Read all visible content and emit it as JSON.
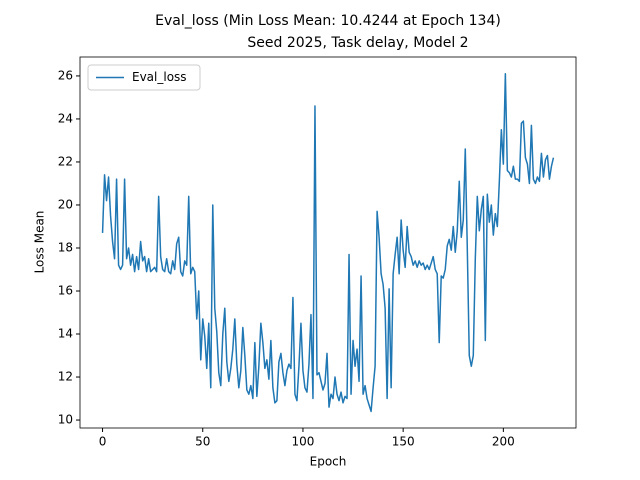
{
  "chart_data": {
    "type": "line",
    "title": [
      "Eval_loss (Min Loss Mean: 10.4244 at Epoch 134)",
      "Seed 2025, Task delay, Model 2"
    ],
    "xlabel": "Epoch",
    "ylabel": "Loss Mean",
    "xlim": [
      -11.25,
      236.25
    ],
    "ylim": [
      9.63,
      26.88
    ],
    "xticks": [
      0,
      50,
      100,
      150,
      200
    ],
    "yticks": [
      10,
      12,
      14,
      16,
      18,
      20,
      22,
      24,
      26
    ],
    "legend": "upper left",
    "grid": false,
    "x": [
      0,
      1,
      2,
      3,
      4,
      5,
      6,
      7,
      8,
      9,
      10,
      11,
      12,
      13,
      14,
      15,
      16,
      17,
      18,
      19,
      20,
      21,
      22,
      23,
      24,
      25,
      26,
      27,
      28,
      29,
      30,
      31,
      32,
      33,
      34,
      35,
      36,
      37,
      38,
      39,
      40,
      41,
      42,
      43,
      44,
      45,
      46,
      47,
      48,
      49,
      50,
      51,
      52,
      53,
      54,
      55,
      56,
      57,
      58,
      59,
      60,
      61,
      62,
      63,
      64,
      65,
      66,
      67,
      68,
      69,
      70,
      71,
      72,
      73,
      74,
      75,
      76,
      77,
      78,
      79,
      80,
      81,
      82,
      83,
      84,
      85,
      86,
      87,
      88,
      89,
      90,
      91,
      92,
      93,
      94,
      95,
      96,
      97,
      98,
      99,
      100,
      101,
      102,
      103,
      104,
      105,
      106,
      107,
      108,
      109,
      110,
      111,
      112,
      113,
      114,
      115,
      116,
      117,
      118,
      119,
      120,
      121,
      122,
      123,
      124,
      125,
      126,
      127,
      128,
      129,
      130,
      131,
      132,
      133,
      134,
      135,
      136,
      137,
      138,
      139,
      140,
      141,
      142,
      143,
      144,
      145,
      146,
      147,
      148,
      149,
      150,
      151,
      152,
      153,
      154,
      155,
      156,
      157,
      158,
      159,
      160,
      161,
      162,
      163,
      164,
      165,
      166,
      167,
      168,
      169,
      170,
      171,
      172,
      173,
      174,
      175,
      176,
      177,
      178,
      179,
      180,
      181,
      182,
      183,
      184,
      185,
      186,
      187,
      188,
      189,
      190,
      191,
      192,
      193,
      194,
      195,
      196,
      197,
      198,
      199,
      200,
      201,
      202,
      203,
      204,
      205,
      206,
      207,
      208,
      209,
      210,
      211,
      212,
      213,
      214,
      215,
      216,
      217,
      218,
      219,
      220,
      221,
      222,
      223,
      224,
      225
    ],
    "series": [
      {
        "name": "Eval_loss",
        "color": "#1f77b4",
        "values": [
          18.7,
          21.4,
          20.2,
          21.3,
          19.5,
          18.3,
          17.5,
          21.2,
          17.2,
          17.0,
          17.2,
          21.2,
          17.5,
          18.0,
          17.2,
          17.7,
          16.9,
          17.6,
          17.0,
          18.3,
          17.4,
          17.6,
          16.9,
          17.5,
          16.9,
          17.0,
          17.1,
          16.9,
          20.4,
          17.6,
          17.0,
          16.9,
          17.5,
          16.9,
          16.8,
          17.4,
          17.0,
          18.2,
          18.5,
          16.9,
          16.7,
          17.4,
          17.2,
          20.4,
          16.8,
          17.1,
          16.9,
          14.7,
          16.0,
          12.8,
          14.7,
          13.9,
          12.4,
          14.5,
          11.5,
          20.0,
          15.2,
          14.1,
          12.2,
          11.6,
          14.0,
          15.2,
          12.7,
          11.8,
          12.4,
          13.3,
          14.7,
          12.6,
          11.5,
          12.3,
          14.3,
          13.0,
          11.4,
          11.2,
          11.6,
          11.0,
          13.6,
          11.1,
          12.5,
          14.5,
          13.6,
          12.4,
          12.8,
          11.9,
          13.7,
          11.5,
          10.8,
          10.9,
          12.7,
          13.1,
          12.2,
          11.6,
          12.3,
          12.6,
          12.4,
          15.7,
          11.2,
          10.9,
          12.5,
          14.5,
          12.3,
          11.5,
          11.3,
          12.6,
          14.9,
          11.0,
          24.6,
          12.1,
          12.2,
          11.8,
          11.4,
          11.7,
          13.1,
          10.6,
          11.2,
          11.0,
          12.0,
          11.2,
          10.9,
          11.3,
          10.8,
          11.1,
          11.0,
          17.7,
          11.2,
          13.7,
          12.5,
          13.3,
          11.8,
          16.7,
          11.2,
          11.6,
          11.0,
          10.7,
          10.4,
          11.5,
          12.5,
          19.7,
          18.5,
          16.8,
          16.3,
          15.2,
          11.0,
          16.1,
          11.5,
          16.8,
          17.7,
          18.5,
          16.8,
          19.3,
          17.9,
          17.1,
          19.0,
          17.8,
          17.6,
          17.2,
          17.4,
          17.1,
          17.4,
          17.2,
          17.3,
          17.0,
          17.2,
          17.0,
          17.3,
          17.6,
          17.0,
          16.8,
          13.6,
          16.7,
          16.6,
          17.0,
          18.1,
          18.4,
          17.9,
          19.0,
          17.8,
          18.8,
          21.1,
          18.5,
          19.3,
          22.6,
          18.0,
          13.0,
          12.5,
          13.0,
          17.5,
          20.4,
          18.8,
          19.8,
          20.4,
          13.7,
          20.5,
          19.2,
          20.0,
          18.6,
          19.6,
          19.0,
          21.1,
          23.5,
          21.9,
          26.1,
          21.6,
          21.5,
          21.3,
          21.8,
          21.2,
          21.2,
          21.1,
          23.8,
          23.9,
          22.2,
          21.9,
          21.0,
          23.7,
          21.2,
          21.0,
          21.3,
          21.1,
          22.4,
          21.3,
          22.1,
          22.3,
          21.2,
          21.8,
          22.2
        ]
      }
    ]
  }
}
